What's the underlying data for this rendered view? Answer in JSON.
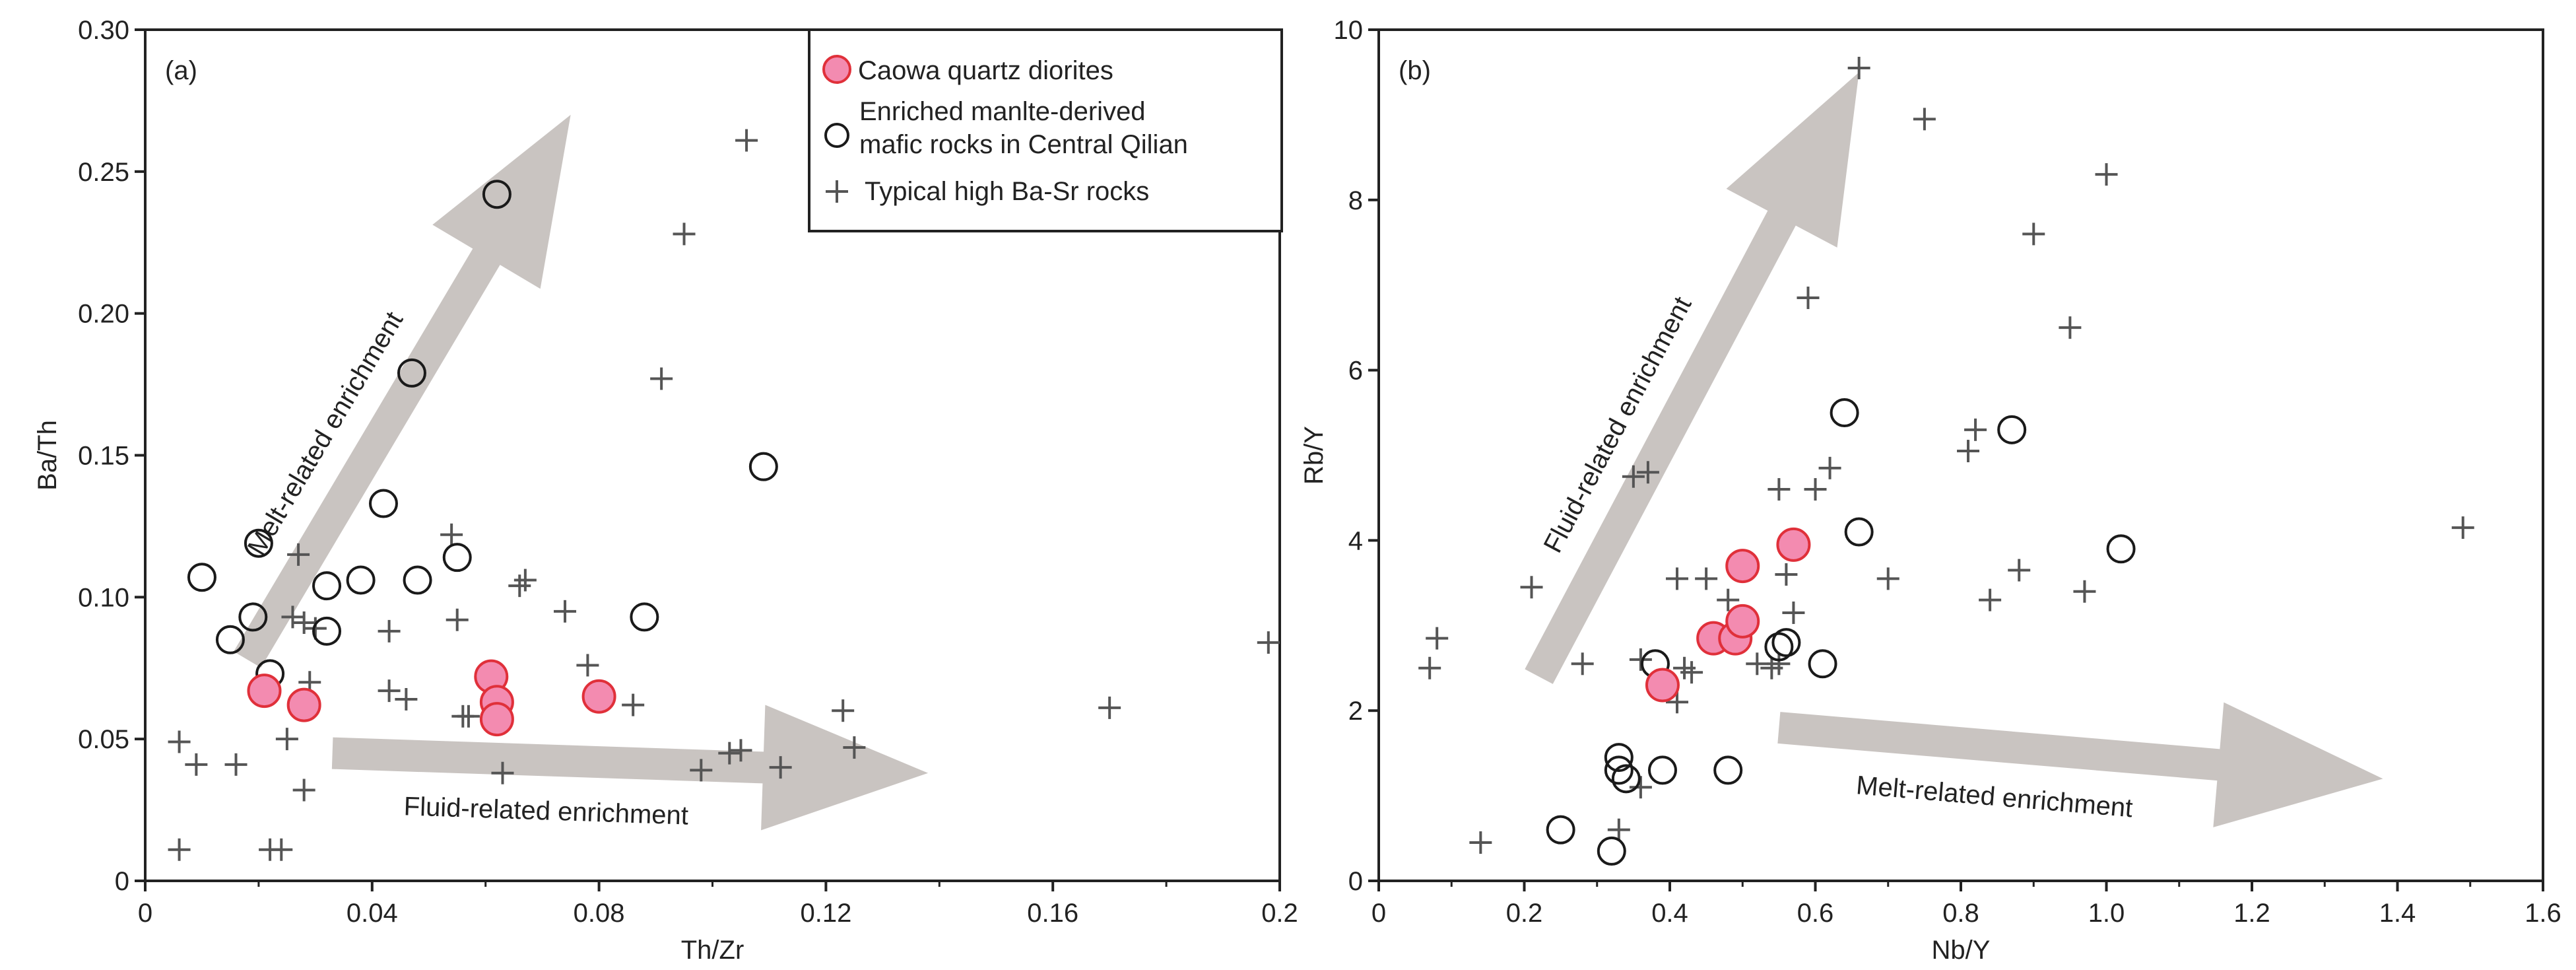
{
  "colors": {
    "pink_fill": "#f38bb0",
    "pink_stroke": "#e0303a",
    "circle_stroke": "#1a1a1a",
    "plus": "#555555",
    "arrow": "#c9c4c1",
    "axis": "#222222"
  },
  "legend": {
    "items": [
      {
        "label": "Caowa quartz diorites",
        "marker": "pink-circle"
      },
      {
        "label": "Enriched   manlte-derived",
        "label2": "mafic rocks in Central Qilian",
        "marker": "open-circle"
      },
      {
        "label": "Typical high Ba-Sr rocks",
        "marker": "plus"
      }
    ]
  },
  "chart_data": [
    {
      "type": "scatter",
      "panel_label": "(a)",
      "xlabel": "Th/Zr",
      "ylabel": "Ba/Th",
      "xlim": [
        0,
        0.2
      ],
      "ylim": [
        0,
        0.3
      ],
      "xticks": [
        0,
        0.04,
        0.08,
        0.12,
        0.16,
        0.2
      ],
      "xtick_labels": [
        "0",
        "0.04",
        "0.08",
        "0.12",
        "0.16",
        "0.2"
      ],
      "xminor": [
        0.02,
        0.06,
        0.1,
        0.14,
        0.18
      ],
      "yticks": [
        0,
        0.05,
        0.1,
        0.15,
        0.2,
        0.25,
        0.3
      ],
      "ytick_labels": [
        "0",
        "0.05",
        "0.10",
        "0.15",
        "0.20",
        "0.25",
        "0.30"
      ],
      "legend_position": "top-right",
      "annotations": [
        {
          "text": "Melt-related enrichment",
          "arrow_from": [
            0.018,
            0.078
          ],
          "arrow_to": [
            0.075,
            0.27
          ]
        },
        {
          "text": "Fluid-related enrichment",
          "arrow_from": [
            0.033,
            0.045
          ],
          "arrow_to": [
            0.138,
            0.038
          ]
        }
      ],
      "series": [
        {
          "name": "Caowa quartz diorites",
          "marker": "pink-circle",
          "points": [
            [
              0.021,
              0.067
            ],
            [
              0.028,
              0.062
            ],
            [
              0.061,
              0.072
            ],
            [
              0.062,
              0.063
            ],
            [
              0.062,
              0.057
            ],
            [
              0.08,
              0.065
            ]
          ]
        },
        {
          "name": "Enriched manlte-derived mafic rocks in Central Qilian",
          "marker": "open-circle",
          "points": [
            [
              0.01,
              0.107
            ],
            [
              0.015,
              0.085
            ],
            [
              0.02,
              0.119
            ],
            [
              0.019,
              0.093
            ],
            [
              0.022,
              0.073
            ],
            [
              0.032,
              0.104
            ],
            [
              0.032,
              0.088
            ],
            [
              0.038,
              0.106
            ],
            [
              0.042,
              0.133
            ],
            [
              0.048,
              0.106
            ],
            [
              0.047,
              0.179
            ],
            [
              0.055,
              0.114
            ],
            [
              0.062,
              0.242
            ],
            [
              0.088,
              0.093
            ],
            [
              0.109,
              0.146
            ]
          ]
        },
        {
          "name": "Typical high Ba-Sr rocks",
          "marker": "plus",
          "points": [
            [
              0.006,
              0.049
            ],
            [
              0.009,
              0.041
            ],
            [
              0.016,
              0.041
            ],
            [
              0.006,
              0.011
            ],
            [
              0.022,
              0.011
            ],
            [
              0.024,
              0.011
            ],
            [
              0.025,
              0.05
            ],
            [
              0.028,
              0.032
            ],
            [
              0.029,
              0.07
            ],
            [
              0.026,
              0.093
            ],
            [
              0.027,
              0.115
            ],
            [
              0.028,
              0.091
            ],
            [
              0.03,
              0.089
            ],
            [
              0.043,
              0.088
            ],
            [
              0.043,
              0.067
            ],
            [
              0.046,
              0.064
            ],
            [
              0.054,
              0.122
            ],
            [
              0.055,
              0.092
            ],
            [
              0.057,
              0.058
            ],
            [
              0.056,
              0.058
            ],
            [
              0.063,
              0.038
            ],
            [
              0.066,
              0.104
            ],
            [
              0.067,
              0.106
            ],
            [
              0.074,
              0.095
            ],
            [
              0.078,
              0.076
            ],
            [
              0.086,
              0.062
            ],
            [
              0.091,
              0.177
            ],
            [
              0.095,
              0.228
            ],
            [
              0.098,
              0.039
            ],
            [
              0.103,
              0.045
            ],
            [
              0.105,
              0.046
            ],
            [
              0.106,
              0.261
            ],
            [
              0.112,
              0.04
            ],
            [
              0.123,
              0.06
            ],
            [
              0.125,
              0.047
            ],
            [
              0.17,
              0.061
            ],
            [
              0.198,
              0.084
            ]
          ]
        }
      ]
    },
    {
      "type": "scatter",
      "panel_label": "(b)",
      "xlabel": "Nb/Y",
      "ylabel": "Rb/Y",
      "xlim": [
        0,
        1.6
      ],
      "ylim": [
        0,
        10
      ],
      "xticks": [
        0,
        0.2,
        0.4,
        0.6,
        0.8,
        1.0,
        1.2,
        1.4,
        1.6
      ],
      "xtick_labels": [
        "0",
        "0.2",
        "0.4",
        "0.6",
        "0.8",
        "1.0",
        "1.2",
        "1.4",
        "1.6"
      ],
      "xminor": [
        0.1,
        0.3,
        0.5,
        0.7,
        0.9,
        1.1,
        1.3,
        1.5
      ],
      "yticks": [
        0,
        2,
        4,
        6,
        8,
        10
      ],
      "ytick_labels": [
        "0",
        "2",
        "4",
        "6",
        "8",
        "10"
      ],
      "annotations": [
        {
          "text": "Fluid-related enrichment",
          "arrow_from": [
            0.22,
            2.4
          ],
          "arrow_to": [
            0.66,
            9.5
          ]
        },
        {
          "text": "Melt-related enrichment",
          "arrow_from": [
            0.55,
            1.8
          ],
          "arrow_to": [
            1.38,
            1.2
          ]
        }
      ],
      "series": [
        {
          "name": "Caowa quartz diorites",
          "marker": "pink-circle",
          "points": [
            [
              0.39,
              2.3
            ],
            [
              0.46,
              2.85
            ],
            [
              0.49,
              2.85
            ],
            [
              0.5,
              3.05
            ],
            [
              0.5,
              3.7
            ],
            [
              0.57,
              3.95
            ]
          ]
        },
        {
          "name": "Enriched manlte-derived mafic rocks in Central Qilian",
          "marker": "open-circle",
          "points": [
            [
              0.25,
              0.6
            ],
            [
              0.32,
              0.35
            ],
            [
              0.33,
              1.45
            ],
            [
              0.33,
              1.3
            ],
            [
              0.34,
              1.2
            ],
            [
              0.39,
              1.3
            ],
            [
              0.48,
              1.3
            ],
            [
              0.38,
              2.55
            ],
            [
              0.55,
              2.75
            ],
            [
              0.56,
              2.8
            ],
            [
              0.61,
              2.55
            ],
            [
              0.64,
              5.5
            ],
            [
              0.66,
              4.1
            ],
            [
              0.87,
              5.3
            ],
            [
              1.02,
              3.9
            ]
          ]
        },
        {
          "name": "Typical high Ba-Sr rocks",
          "marker": "plus",
          "points": [
            [
              0.07,
              2.5
            ],
            [
              0.08,
              2.85
            ],
            [
              0.14,
              0.45
            ],
            [
              0.21,
              3.45
            ],
            [
              0.28,
              2.55
            ],
            [
              0.33,
              0.6
            ],
            [
              0.36,
              1.1
            ],
            [
              0.35,
              4.75
            ],
            [
              0.37,
              4.8
            ],
            [
              0.36,
              2.6
            ],
            [
              0.41,
              2.1
            ],
            [
              0.41,
              3.55
            ],
            [
              0.42,
              2.5
            ],
            [
              0.43,
              2.45
            ],
            [
              0.45,
              3.55
            ],
            [
              0.48,
              3.3
            ],
            [
              0.52,
              2.55
            ],
            [
              0.54,
              2.5
            ],
            [
              0.55,
              2.55
            ],
            [
              0.55,
              4.6
            ],
            [
              0.56,
              3.6
            ],
            [
              0.57,
              3.15
            ],
            [
              0.59,
              6.85
            ],
            [
              0.6,
              4.6
            ],
            [
              0.62,
              4.85
            ],
            [
              0.66,
              9.55
            ],
            [
              0.7,
              3.55
            ],
            [
              0.75,
              8.95
            ],
            [
              0.81,
              5.05
            ],
            [
              0.82,
              5.3
            ],
            [
              0.84,
              3.3
            ],
            [
              0.88,
              3.65
            ],
            [
              0.9,
              7.6
            ],
            [
              0.95,
              6.5
            ],
            [
              0.97,
              3.4
            ],
            [
              1.0,
              8.3
            ],
            [
              1.49,
              4.15
            ]
          ]
        }
      ]
    }
  ]
}
